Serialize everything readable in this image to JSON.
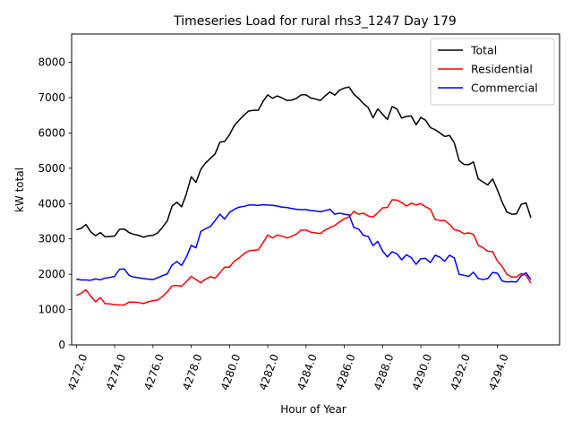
{
  "chart_data": {
    "type": "line",
    "title": "Timeseries Load for rural rhs3_1247  Day 179",
    "xlabel": "Hour of Year",
    "ylabel": "kW total",
    "xlim": [
      4271.75,
      4297.25
    ],
    "ylim": [
      0,
      8800
    ],
    "x_start": 4272.0,
    "x_step": 0.25,
    "xticks": [
      4272.0,
      4274.0,
      4276.0,
      4278.0,
      4280.0,
      4282.0,
      4284.0,
      4286.0,
      4288.0,
      4290.0,
      4292.0,
      4294.0
    ],
    "xtick_labels": [
      "4272.0",
      "4274.0",
      "4276.0",
      "4278.0",
      "4280.0",
      "4282.0",
      "4284.0",
      "4286.0",
      "4288.0",
      "4290.0",
      "4292.0",
      "4294.0"
    ],
    "yticks": [
      0,
      1000,
      2000,
      3000,
      4000,
      5000,
      6000,
      7000,
      8000
    ],
    "ytick_labels": [
      "0",
      "1000",
      "2000",
      "3000",
      "4000",
      "5000",
      "6000",
      "7000",
      "8000"
    ],
    "legend_position": "top-right",
    "series": [
      {
        "name": "Total",
        "color": "#000000",
        "values": [
          3260,
          3300,
          3410,
          3200,
          3090,
          3180,
          3060,
          3070,
          3080,
          3270,
          3280,
          3180,
          3130,
          3100,
          3050,
          3090,
          3100,
          3170,
          3330,
          3510,
          3930,
          4040,
          3910,
          4280,
          4760,
          4600,
          4970,
          5150,
          5280,
          5410,
          5740,
          5760,
          5950,
          6210,
          6360,
          6500,
          6620,
          6640,
          6640,
          6890,
          7080,
          6980,
          7050,
          6990,
          6920,
          6930,
          6980,
          7080,
          7080,
          6990,
          6960,
          6920,
          7050,
          7160,
          7070,
          7210,
          7270,
          7300,
          7100,
          6980,
          6830,
          6720,
          6430,
          6680,
          6530,
          6380,
          6750,
          6680,
          6420,
          6470,
          6480,
          6230,
          6440,
          6360,
          6150,
          6090,
          6000,
          5900,
          5930,
          5720,
          5220,
          5110,
          5100,
          5180,
          4700,
          4610,
          4530,
          4700,
          4390,
          4040,
          3760,
          3700,
          3710,
          3980,
          4020,
          3600
        ]
      },
      {
        "name": "Residential",
        "color": "#ff0000",
        "values": [
          1400,
          1460,
          1560,
          1380,
          1220,
          1340,
          1170,
          1160,
          1140,
          1130,
          1130,
          1210,
          1210,
          1200,
          1170,
          1220,
          1250,
          1270,
          1370,
          1500,
          1670,
          1680,
          1660,
          1790,
          1940,
          1850,
          1760,
          1860,
          1930,
          1890,
          2040,
          2200,
          2200,
          2370,
          2460,
          2580,
          2660,
          2680,
          2690,
          2890,
          3110,
          3030,
          3110,
          3080,
          3030,
          3070,
          3140,
          3250,
          3250,
          3190,
          3170,
          3150,
          3250,
          3320,
          3380,
          3480,
          3570,
          3620,
          3780,
          3700,
          3730,
          3650,
          3620,
          3740,
          3880,
          3890,
          4110,
          4100,
          4030,
          3930,
          4010,
          3960,
          4000,
          3910,
          3840,
          3550,
          3520,
          3520,
          3410,
          3260,
          3230,
          3150,
          3170,
          3130,
          2820,
          2750,
          2650,
          2640,
          2380,
          2220,
          2000,
          1920,
          1920,
          2020,
          1970,
          1750
        ]
      },
      {
        "name": "Commercial",
        "color": "#0000ff",
        "values": [
          1860,
          1840,
          1840,
          1830,
          1870,
          1840,
          1890,
          1910,
          1940,
          2140,
          2150,
          1970,
          1920,
          1900,
          1880,
          1860,
          1850,
          1900,
          1960,
          2010,
          2260,
          2360,
          2250,
          2490,
          2820,
          2750,
          3210,
          3290,
          3350,
          3520,
          3700,
          3560,
          3750,
          3840,
          3900,
          3920,
          3960,
          3960,
          3950,
          3970,
          3960,
          3950,
          3930,
          3900,
          3890,
          3860,
          3840,
          3830,
          3830,
          3800,
          3790,
          3770,
          3800,
          3840,
          3700,
          3730,
          3700,
          3680,
          3320,
          3280,
          3100,
          3070,
          2810,
          2930,
          2660,
          2490,
          2640,
          2580,
          2410,
          2550,
          2470,
          2280,
          2440,
          2450,
          2330,
          2540,
          2480,
          2370,
          2540,
          2460,
          2000,
          1970,
          1940,
          2060,
          1880,
          1850,
          1880,
          2050,
          2030,
          1810,
          1780,
          1790,
          1780,
          1960,
          2040,
          1850
        ]
      }
    ]
  }
}
